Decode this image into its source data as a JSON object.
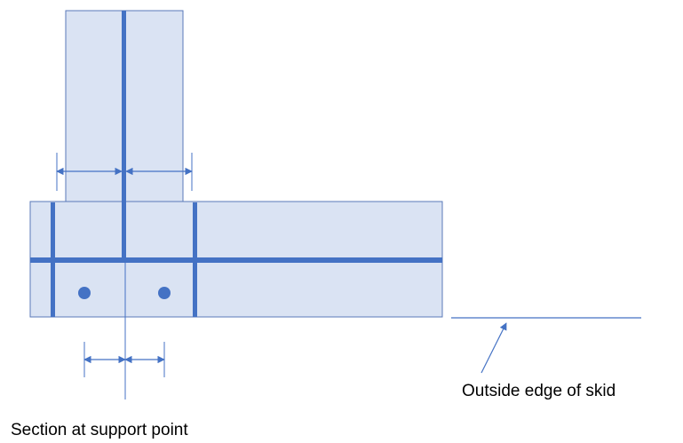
{
  "labels": {
    "edge_note": "Outside edge of skid",
    "caption": "Section at support point"
  },
  "colors": {
    "block_fill": "#dae3f3",
    "block_stroke": "#5a79b8",
    "bar": "#4472c4",
    "dimension": "#4472c4"
  }
}
